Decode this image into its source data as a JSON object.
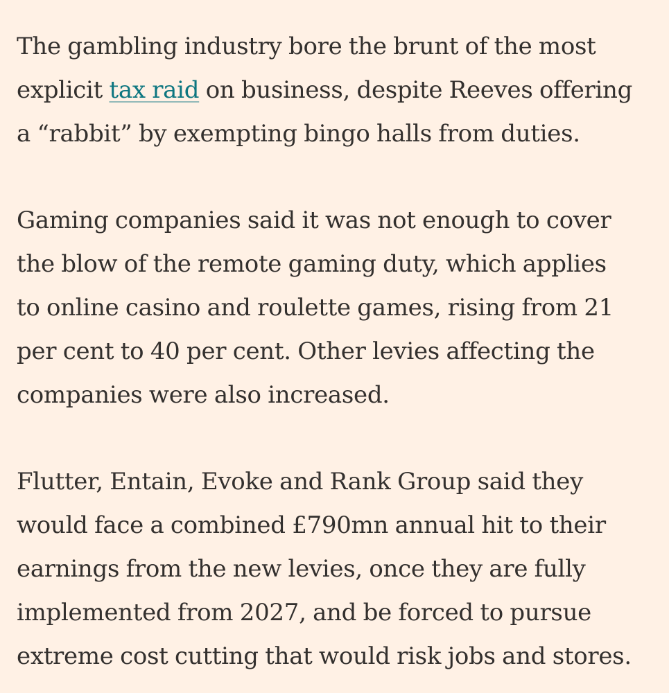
{
  "article": {
    "p1": {
      "l1": "The gambling industry bore the brunt of the most",
      "l2_pre": "explicit ",
      "l2_link": "tax raid",
      "l2_post": " on business, despite Reeves offering",
      "l3": "a “rabbit” by exempting bingo halls from duties."
    },
    "p2": {
      "l1": "Gaming companies said it was not enough to cover",
      "l2": "the blow of the remote gaming duty, which applies",
      "l3": "to online casino and roulette games, rising from 21",
      "l4": "per cent to 40 per cent. Other levies affecting the",
      "l5": "companies were also increased."
    },
    "p3": {
      "l1": "Flutter, Entain, Evoke and Rank Group said they",
      "l2": "would face a combined £790mn annual hit to their",
      "l3": "earnings from the new levies, once they are fully",
      "l4": "implemented from 2027, and be forced to pursue",
      "l5": "extreme cost cutting that would risk jobs and stores."
    }
  },
  "colors": {
    "background": "#fff1e5",
    "text": "#33302e",
    "link": "#0d7680"
  }
}
